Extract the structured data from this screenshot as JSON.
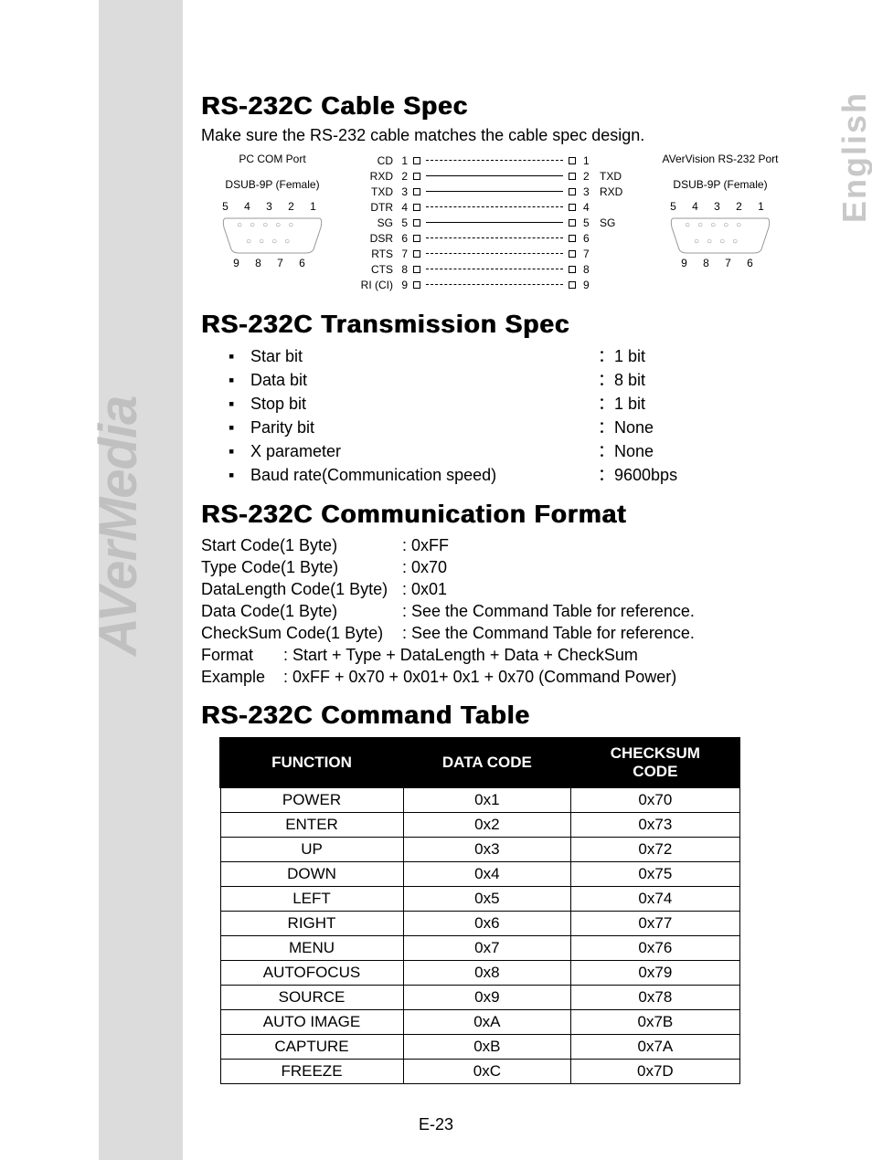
{
  "brand": "AVerMedia",
  "language": "English",
  "page_number": "E-23",
  "cable_spec": {
    "title": "RS-232C Cable Spec",
    "intro": "Make sure the RS-232 cable matches the cable spec design.",
    "left_port": {
      "line1": "PC COM Port",
      "line2": "DSUB-9P (Female)",
      "pins_top": "5  4  3  2  1",
      "pins_bottom": "9  8  7  6"
    },
    "right_port": {
      "line1": "AVerVision RS-232 Port",
      "line2": "DSUB-9P (Female)",
      "pins_top": "5  4  3  2  1",
      "pins_bottom": "9  8  7  6"
    },
    "pins": [
      {
        "l_label": "CD",
        "l_num": "1",
        "solid": false,
        "r_num": "1",
        "r_label": ""
      },
      {
        "l_label": "RXD",
        "l_num": "2",
        "solid": true,
        "r_num": "2",
        "r_label": "TXD"
      },
      {
        "l_label": "TXD",
        "l_num": "3",
        "solid": true,
        "r_num": "3",
        "r_label": "RXD"
      },
      {
        "l_label": "DTR",
        "l_num": "4",
        "solid": false,
        "r_num": "4",
        "r_label": ""
      },
      {
        "l_label": "SG",
        "l_num": "5",
        "solid": true,
        "r_num": "5",
        "r_label": "SG"
      },
      {
        "l_label": "DSR",
        "l_num": "6",
        "solid": false,
        "r_num": "6",
        "r_label": ""
      },
      {
        "l_label": "RTS",
        "l_num": "7",
        "solid": false,
        "r_num": "7",
        "r_label": ""
      },
      {
        "l_label": "CTS",
        "l_num": "8",
        "solid": false,
        "r_num": "8",
        "r_label": ""
      },
      {
        "l_label": "RI (CI)",
        "l_num": "9",
        "solid": false,
        "r_num": "9",
        "r_label": ""
      }
    ]
  },
  "transmission": {
    "title": "RS-232C Transmission Spec",
    "rows": [
      {
        "label": "Star bit",
        "value": "：1 bit"
      },
      {
        "label": "Data bit",
        "value": "：8 bit"
      },
      {
        "label": "Stop bit",
        "value": "：1 bit"
      },
      {
        "label": "Parity bit",
        "value": "：None"
      },
      {
        "label": "X parameter",
        "value": "：None"
      },
      {
        "label": "Baud rate(Communication speed)",
        "value": "：9600bps"
      }
    ]
  },
  "comm_format": {
    "title": "RS-232C Communication Format",
    "rows": [
      {
        "k": "Start Code(1 Byte)",
        "v": ": 0xFF"
      },
      {
        "k": "Type Code(1 Byte)",
        "v": ": 0x70"
      },
      {
        "k": "DataLength Code(1 Byte)",
        "v": ": 0x01"
      },
      {
        "k": "Data Code(1 Byte)",
        "v": ": See the Command Table for reference."
      },
      {
        "k": "CheckSum Code(1 Byte)",
        "v": ": See the Command Table for reference."
      }
    ],
    "format_label": "Format",
    "format_value": ": Start   + Type + DataLength + Data + CheckSum",
    "example_label": "Example",
    "example_value": ": 0xFF + 0x70 + 0x01+ 0x1 + 0x70 (Command Power)"
  },
  "command_table": {
    "title": "RS-232C Command Table",
    "columns": [
      "FUNCTION",
      "DATA CODE",
      "CHECKSUM CODE"
    ],
    "rows": [
      [
        "POWER",
        "0x1",
        "0x70"
      ],
      [
        "ENTER",
        "0x2",
        "0x73"
      ],
      [
        "UP",
        "0x3",
        "0x72"
      ],
      [
        "DOWN",
        "0x4",
        "0x75"
      ],
      [
        "LEFT",
        "0x5",
        "0x74"
      ],
      [
        "RIGHT",
        "0x6",
        "0x77"
      ],
      [
        "MENU",
        "0x7",
        "0x76"
      ],
      [
        "AUTOFOCUS",
        "0x8",
        "0x79"
      ],
      [
        "SOURCE",
        "0x9",
        "0x78"
      ],
      [
        "AUTO IMAGE",
        "0xA",
        "0x7B"
      ],
      [
        "CAPTURE",
        "0xB",
        "0x7A"
      ],
      [
        "FREEZE",
        "0xC",
        "0x7D"
      ]
    ]
  },
  "colors": {
    "band": "#dcdcdc",
    "brand_text": "#c0c0c0",
    "lang_text": "#c8c8c8",
    "table_header_bg": "#000000",
    "table_header_fg": "#ffffff"
  }
}
